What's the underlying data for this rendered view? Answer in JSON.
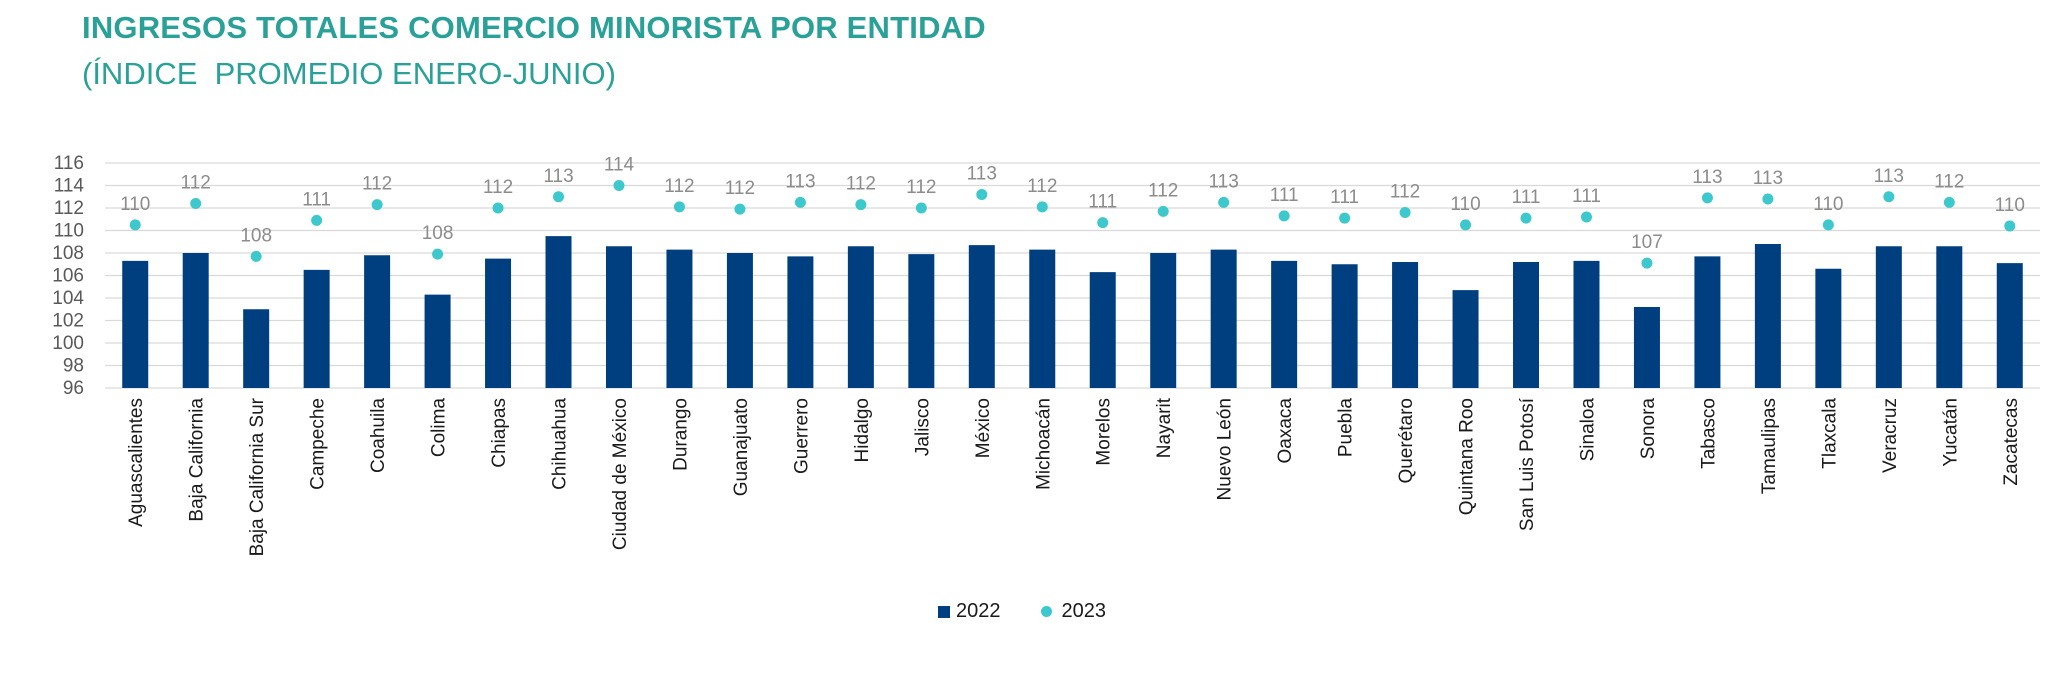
{
  "title": "INGRESOS TOTALES COMERCIO MINORISTA POR ENTIDAD",
  "subtitle": "(ÍNDICE  PROMEDIO ENERO-JUNIO)",
  "colors": {
    "title": "#2aa198",
    "bar_2022": "#003f7f",
    "dot_2023": "#3cc8cc",
    "grid": "#d9d9d9"
  },
  "chart_data": {
    "type": "bar",
    "ylim": [
      96,
      116
    ],
    "yticks": [
      96,
      98,
      100,
      102,
      104,
      106,
      108,
      110,
      112,
      114,
      116
    ],
    "grid": true,
    "legend": "bottom",
    "categories": [
      "Aguascalientes",
      "Baja California",
      "Baja California Sur",
      "Campeche",
      "Coahuila",
      "Colima",
      "Chiapas",
      "Chihuahua",
      "Ciudad de México",
      "Durango",
      "Guanajuato",
      "Guerrero",
      "Hidalgo",
      "Jalisco",
      "México",
      "Michoacán",
      "Morelos",
      "Nayarit",
      "Nuevo León",
      "Oaxaca",
      "Puebla",
      "Querétaro",
      "Quintana Roo",
      "San Luis Potosí",
      "Sinaloa",
      "Sonora",
      "Tabasco",
      "Tamaulipas",
      "Tlaxcala",
      "Veracruz",
      "Yucatán",
      "Zacatecas"
    ],
    "series": [
      {
        "name": "2022",
        "type": "bar",
        "values": [
          107.3,
          108.0,
          103.0,
          106.5,
          107.8,
          104.3,
          107.5,
          109.5,
          108.6,
          108.3,
          108.0,
          107.7,
          108.6,
          107.9,
          108.7,
          108.3,
          106.3,
          108.0,
          108.3,
          107.3,
          107.0,
          107.2,
          104.7,
          107.2,
          107.3,
          103.2,
          107.7,
          108.8,
          106.6,
          108.6,
          108.6,
          107.1
        ]
      },
      {
        "name": "2023",
        "type": "scatter",
        "values": [
          110.5,
          112.4,
          107.7,
          110.9,
          112.3,
          107.9,
          112.0,
          113.0,
          114.0,
          112.1,
          111.9,
          112.5,
          112.3,
          112.0,
          113.2,
          112.1,
          110.7,
          111.7,
          112.5,
          111.3,
          111.1,
          111.6,
          110.5,
          111.1,
          111.2,
          107.1,
          112.9,
          112.8,
          110.5,
          113.0,
          112.5,
          110.4
        ]
      }
    ],
    "data_labels_2023": [
      "110",
      "112",
      "108",
      "111",
      "112",
      "108",
      "112",
      "113",
      "114",
      "112",
      "112",
      "113",
      "112",
      "112",
      "113",
      "112",
      "111",
      "112",
      "113",
      "111",
      "111",
      "112",
      "110",
      "111",
      "111",
      "107",
      "113",
      "113",
      "110",
      "113",
      "112",
      "110"
    ]
  }
}
